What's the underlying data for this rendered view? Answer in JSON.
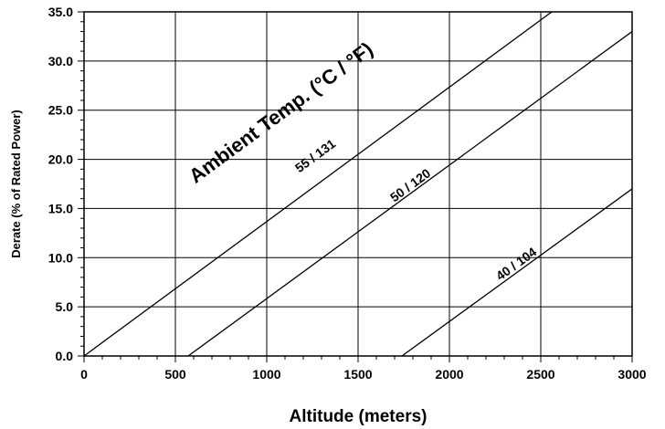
{
  "chart_data": {
    "type": "line",
    "title": "",
    "xlabel": "Altitude (meters)",
    "ylabel": "Derate (% of Rated Power)",
    "xlim": [
      0,
      3000
    ],
    "ylim": [
      0,
      35
    ],
    "xticks": [
      0,
      500,
      1000,
      1500,
      2000,
      2500,
      3000
    ],
    "xtick_labels": [
      "0",
      "500",
      "1000",
      "1500",
      "2000",
      "2500",
      "3000"
    ],
    "yticks": [
      0,
      5,
      10,
      15,
      20,
      25,
      30,
      35
    ],
    "ytick_labels": [
      "0.0",
      "5.0",
      "10.0",
      "15.0",
      "20.0",
      "25.0",
      "30.0",
      "35.0"
    ],
    "grid": true,
    "legend": "none",
    "annotations": [
      {
        "text": "Ambient Temp. (°C / °F)"
      }
    ],
    "series": [
      {
        "name": "55 / 131",
        "points": [
          {
            "x": 0,
            "y": 0
          },
          {
            "x": 2560,
            "y": 35
          }
        ],
        "label_x": 1280,
        "label_y": 20
      },
      {
        "name": "50 / 120",
        "points": [
          {
            "x": 570,
            "y": 0
          },
          {
            "x": 3000,
            "y": 33
          }
        ],
        "label_x": 1800,
        "label_y": 17
      },
      {
        "name": "40 / 104",
        "points": [
          {
            "x": 1740,
            "y": 0
          },
          {
            "x": 3000,
            "y": 17
          }
        ],
        "label_x": 2380,
        "label_y": 9
      }
    ]
  }
}
